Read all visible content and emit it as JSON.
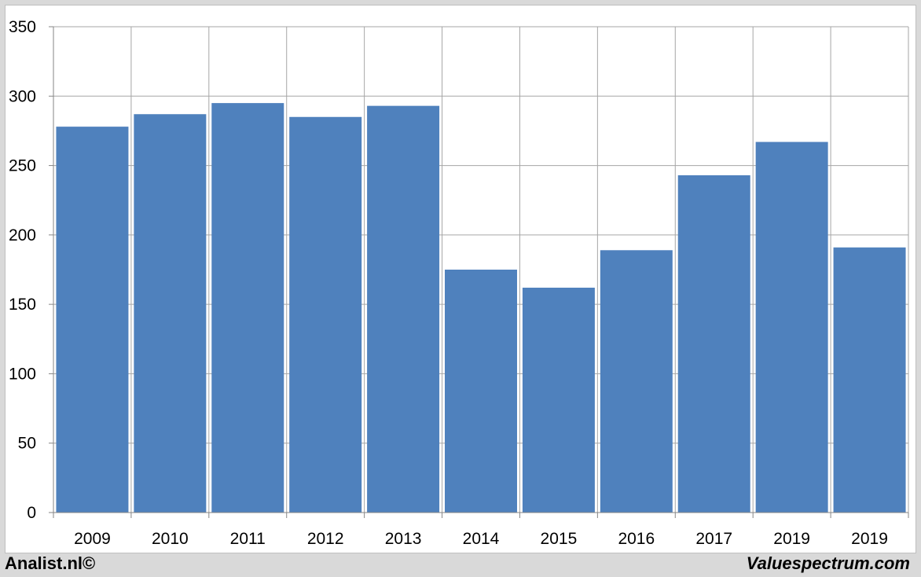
{
  "chart_data": {
    "type": "bar",
    "categories": [
      "2009",
      "2010",
      "2011",
      "2012",
      "2013",
      "2014",
      "2015",
      "2016",
      "2017",
      "2019",
      "2019"
    ],
    "values": [
      278,
      287,
      295,
      285,
      293,
      175,
      162,
      189,
      243,
      267,
      191
    ],
    "ylim": [
      0,
      350
    ],
    "yticks": [
      0,
      50,
      100,
      150,
      200,
      250,
      300,
      350
    ],
    "grid": true,
    "bar_color": "#4f81bd"
  },
  "footer": {
    "left": "Analist.nl©",
    "right": "Valuespectrum.com"
  }
}
